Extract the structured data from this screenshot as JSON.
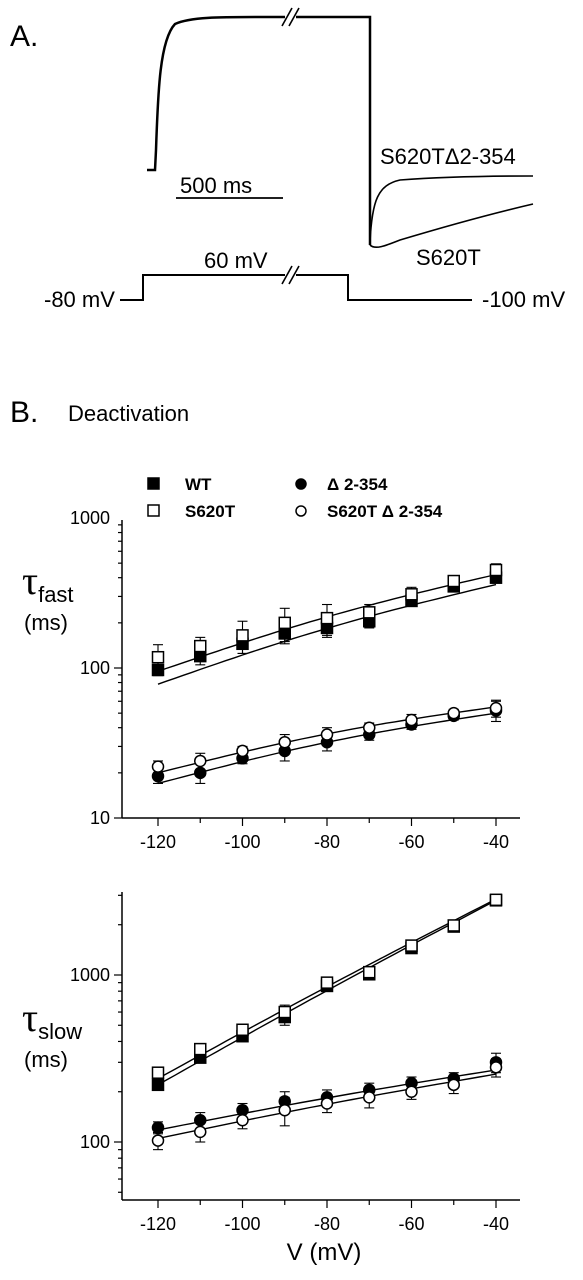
{
  "panel_a": {
    "label": "A.",
    "trace_labels": [
      "S620TΔ2-354",
      "S620T"
    ],
    "scale_bar": "500 ms",
    "protocol": {
      "hold": "-80 mV",
      "step": "60 mV",
      "tail": "-100 mV"
    }
  },
  "panel_b": {
    "label": "B.",
    "title": "Deactivation"
  },
  "legend": [
    {
      "name": "WT",
      "marker": "filled-square"
    },
    {
      "name": "Δ 2-354",
      "marker": "filled-circle"
    },
    {
      "name": "S620T",
      "marker": "open-square"
    },
    {
      "name": "S620T Δ 2-354",
      "marker": "open-circle"
    }
  ],
  "chart_data": [
    {
      "type": "scatter",
      "ylabel_main": "τ",
      "ylabel_sub": "fast",
      "ylabel_unit": "(ms)",
      "yscale": "log",
      "ylim": [
        10,
        1000
      ],
      "xlim": [
        -130,
        -35
      ],
      "yticks": [
        "10",
        "100",
        "1000"
      ],
      "x": [
        -120,
        -110,
        -100,
        -90,
        -80,
        -70,
        -60,
        -50,
        -40
      ],
      "series": [
        {
          "name": "WT",
          "marker": "filled-square",
          "values": [
            97,
            120,
            145,
            170,
            185,
            205,
            280,
            350,
            400
          ],
          "errors": [
            8,
            15,
            20,
            25,
            25,
            20,
            20,
            20,
            20
          ]
        },
        {
          "name": "S620T",
          "marker": "open-square",
          "values": [
            118,
            140,
            165,
            200,
            215,
            235,
            310,
            380,
            450
          ],
          "errors": [
            25,
            20,
            40,
            50,
            50,
            30,
            35,
            30,
            45
          ]
        },
        {
          "name": "Δ 2-354",
          "marker": "filled-circle",
          "values": [
            19,
            20,
            25,
            28,
            32,
            36,
            42,
            48,
            52
          ],
          "errors": [
            2,
            3,
            2,
            4,
            4,
            3,
            3,
            3,
            8
          ]
        },
        {
          "name": "S620T Δ 2-354",
          "marker": "open-circle",
          "values": [
            22,
            24,
            28,
            32,
            36,
            40,
            45,
            50,
            54
          ],
          "errors": [
            2,
            3,
            2,
            4,
            4,
            3,
            4,
            3,
            7
          ]
        }
      ],
      "fits": [
        {
          "x": [
            -120,
            -40
          ],
          "values": [
            95,
            420
          ]
        },
        {
          "x": [
            -120,
            -40
          ],
          "values": [
            78,
            360
          ]
        },
        {
          "x": [
            -120,
            -40
          ],
          "values": [
            20,
            55
          ]
        },
        {
          "x": [
            -120,
            -40
          ],
          "values": [
            17,
            50
          ]
        }
      ]
    },
    {
      "type": "scatter",
      "ylabel_main": "τ",
      "ylabel_sub": "slow",
      "ylabel_unit": "(ms)",
      "yscale": "log",
      "ylim": [
        50,
        3000
      ],
      "xlim": [
        -130,
        -35
      ],
      "yticks": [
        "100",
        "1000"
      ],
      "xticks": [
        "-120",
        "-100",
        "-80",
        "-60",
        "-40"
      ],
      "xlabel": "V (mV)",
      "x": [
        -120,
        -110,
        -100,
        -90,
        -80,
        -70,
        -60,
        -50,
        -40
      ],
      "series": [
        {
          "name": "WT",
          "marker": "filled-square",
          "values": [
            220,
            320,
            430,
            560,
            860,
            1010,
            1450,
            1950,
            2800
          ],
          "errors": [
            15,
            20,
            30,
            60,
            50,
            40,
            40,
            50,
            60
          ]
        },
        {
          "name": "S620T",
          "marker": "open-square",
          "values": [
            260,
            360,
            470,
            600,
            900,
            1040,
            1500,
            1980,
            2820
          ],
          "errors": [
            15,
            20,
            35,
            60,
            60,
            40,
            50,
            50,
            60
          ]
        },
        {
          "name": "Δ 2-354",
          "marker": "filled-circle",
          "values": [
            122,
            135,
            155,
            175,
            185,
            205,
            225,
            240,
            300
          ],
          "errors": [
            10,
            15,
            15,
            25,
            20,
            20,
            20,
            20,
            40
          ]
        },
        {
          "name": "S620T Δ 2-354",
          "marker": "open-circle",
          "values": [
            102,
            115,
            135,
            155,
            170,
            185,
            200,
            220,
            280
          ],
          "errors": [
            12,
            15,
            15,
            30,
            20,
            25,
            20,
            25,
            35
          ]
        }
      ],
      "fits": [
        {
          "x": [
            -120,
            -40
          ],
          "values": [
            240,
            2850
          ]
        },
        {
          "x": [
            -120,
            -40
          ],
          "values": [
            220,
            2800
          ]
        },
        {
          "x": [
            -120,
            -40
          ],
          "values": [
            118,
            270
          ]
        },
        {
          "x": [
            -120,
            -40
          ],
          "values": [
            105,
            255
          ]
        }
      ]
    }
  ]
}
